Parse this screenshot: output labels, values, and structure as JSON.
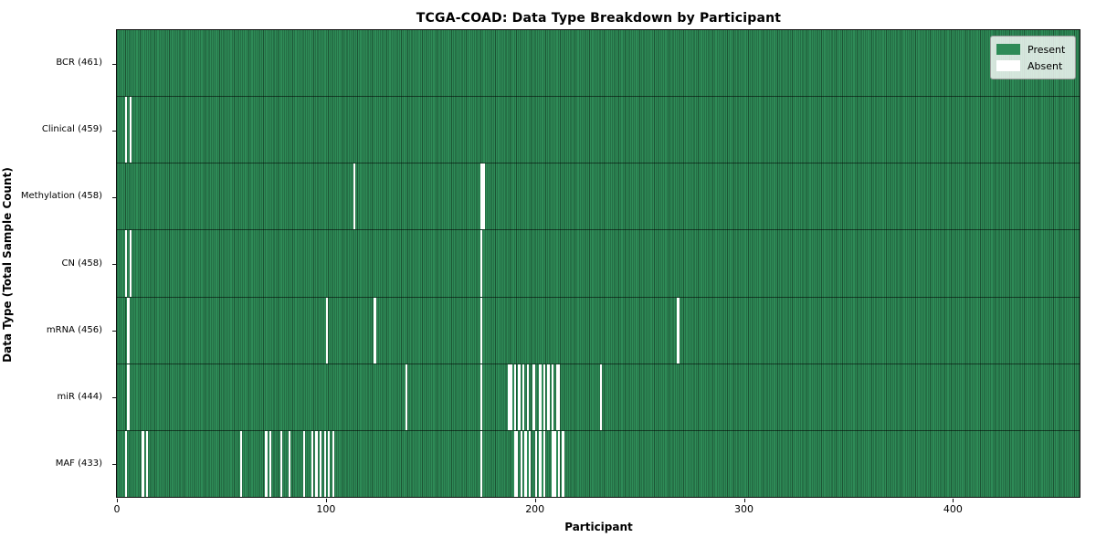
{
  "title": "TCGA-COAD: Data Type Breakdown by Participant",
  "xlabel": "Participant",
  "ylabel": "Data Type (Total Sample Count)",
  "legend": {
    "present_label": "Present",
    "absent_label": "Absent"
  },
  "colors": {
    "present": "#2e8b57",
    "present_dark_stripe": "#1c5434",
    "absent": "#ffffff",
    "row_separator": "rgba(0,0,0,0.55)"
  },
  "chart_data": {
    "type": "heatmap",
    "title": "TCGA-COAD: Data Type Breakdown by Participant",
    "xlabel": "Participant",
    "ylabel": "Data Type (Total Sample Count)",
    "legend_entries": [
      "Present",
      "Absent"
    ],
    "legend_position": "upper right",
    "n_participants": 461,
    "x_ticks": [
      0,
      100,
      200,
      300,
      400
    ],
    "xlim": [
      0,
      461
    ],
    "rows": [
      {
        "label": "BCR (461)",
        "data_type": "BCR",
        "total": 461,
        "absent_participants": []
      },
      {
        "label": "Clinical (459)",
        "data_type": "Clinical",
        "total": 459,
        "absent_participants": [
          4,
          6
        ]
      },
      {
        "label": "Methylation (458)",
        "data_type": "Methylation",
        "total": 458,
        "absent_participants": [
          113,
          174,
          175
        ]
      },
      {
        "label": "CN (458)",
        "data_type": "CN",
        "total": 458,
        "absent_participants": [
          4,
          6,
          174
        ]
      },
      {
        "label": "mRNA (456)",
        "data_type": "mRNA",
        "total": 456,
        "absent_participants": [
          5,
          100,
          123,
          174,
          268
        ]
      },
      {
        "label": "miR (444)",
        "data_type": "miR",
        "total": 444,
        "absent_participants": [
          5,
          138,
          174,
          187,
          188,
          190,
          192,
          194,
          196,
          199,
          202,
          204,
          206,
          208,
          210,
          211,
          231
        ]
      },
      {
        "label": "MAF (433)",
        "data_type": "MAF",
        "total": 433,
        "absent_participants": [
          4,
          12,
          14,
          59,
          71,
          73,
          78,
          82,
          89,
          93,
          95,
          97,
          99,
          101,
          103,
          174,
          190,
          191,
          193,
          195,
          197,
          200,
          202,
          204,
          208,
          209,
          211,
          213
        ]
      }
    ]
  }
}
